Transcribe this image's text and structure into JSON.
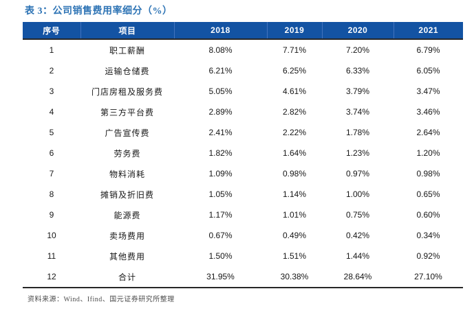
{
  "title": "表 3：公司销售费用率细分（%）",
  "source_note": "资料来源：Wind、Ifind、国元证券研究所整理",
  "colors": {
    "header_bg": "#1353A3",
    "header_divider": "#4273BE",
    "title_blue": "#2E74B5",
    "border_dark": "#262626",
    "source_text": "#4d4d4d"
  },
  "chart_data": {
    "type": "table",
    "title": "表 3：公司销售费用率细分（%）",
    "columns": [
      "序号",
      "项目",
      "2018",
      "2019",
      "2020",
      "2021"
    ],
    "rows": [
      [
        "1",
        "职工薪酬",
        "8.08%",
        "7.71%",
        "7.20%",
        "6.79%"
      ],
      [
        "2",
        "运输仓储费",
        "6.21%",
        "6.25%",
        "6.33%",
        "6.05%"
      ],
      [
        "3",
        "门店房租及服务费",
        "5.05%",
        "4.61%",
        "3.79%",
        "3.47%"
      ],
      [
        "4",
        "第三方平台费",
        "2.89%",
        "2.82%",
        "3.74%",
        "3.46%"
      ],
      [
        "5",
        "广告宣传费",
        "2.41%",
        "2.22%",
        "1.78%",
        "2.64%"
      ],
      [
        "6",
        "劳务费",
        "1.82%",
        "1.64%",
        "1.23%",
        "1.20%"
      ],
      [
        "7",
        "物料消耗",
        "1.09%",
        "0.98%",
        "0.97%",
        "0.98%"
      ],
      [
        "8",
        "摊销及折旧费",
        "1.05%",
        "1.14%",
        "1.00%",
        "0.65%"
      ],
      [
        "9",
        "能源费",
        "1.17%",
        "1.01%",
        "0.75%",
        "0.60%"
      ],
      [
        "10",
        "卖场费用",
        "0.67%",
        "0.49%",
        "0.42%",
        "0.34%"
      ],
      [
        "11",
        "其他费用",
        "1.50%",
        "1.51%",
        "1.44%",
        "0.92%"
      ],
      [
        "12",
        "合计",
        "31.95%",
        "30.38%",
        "28.64%",
        "27.10%"
      ]
    ]
  }
}
